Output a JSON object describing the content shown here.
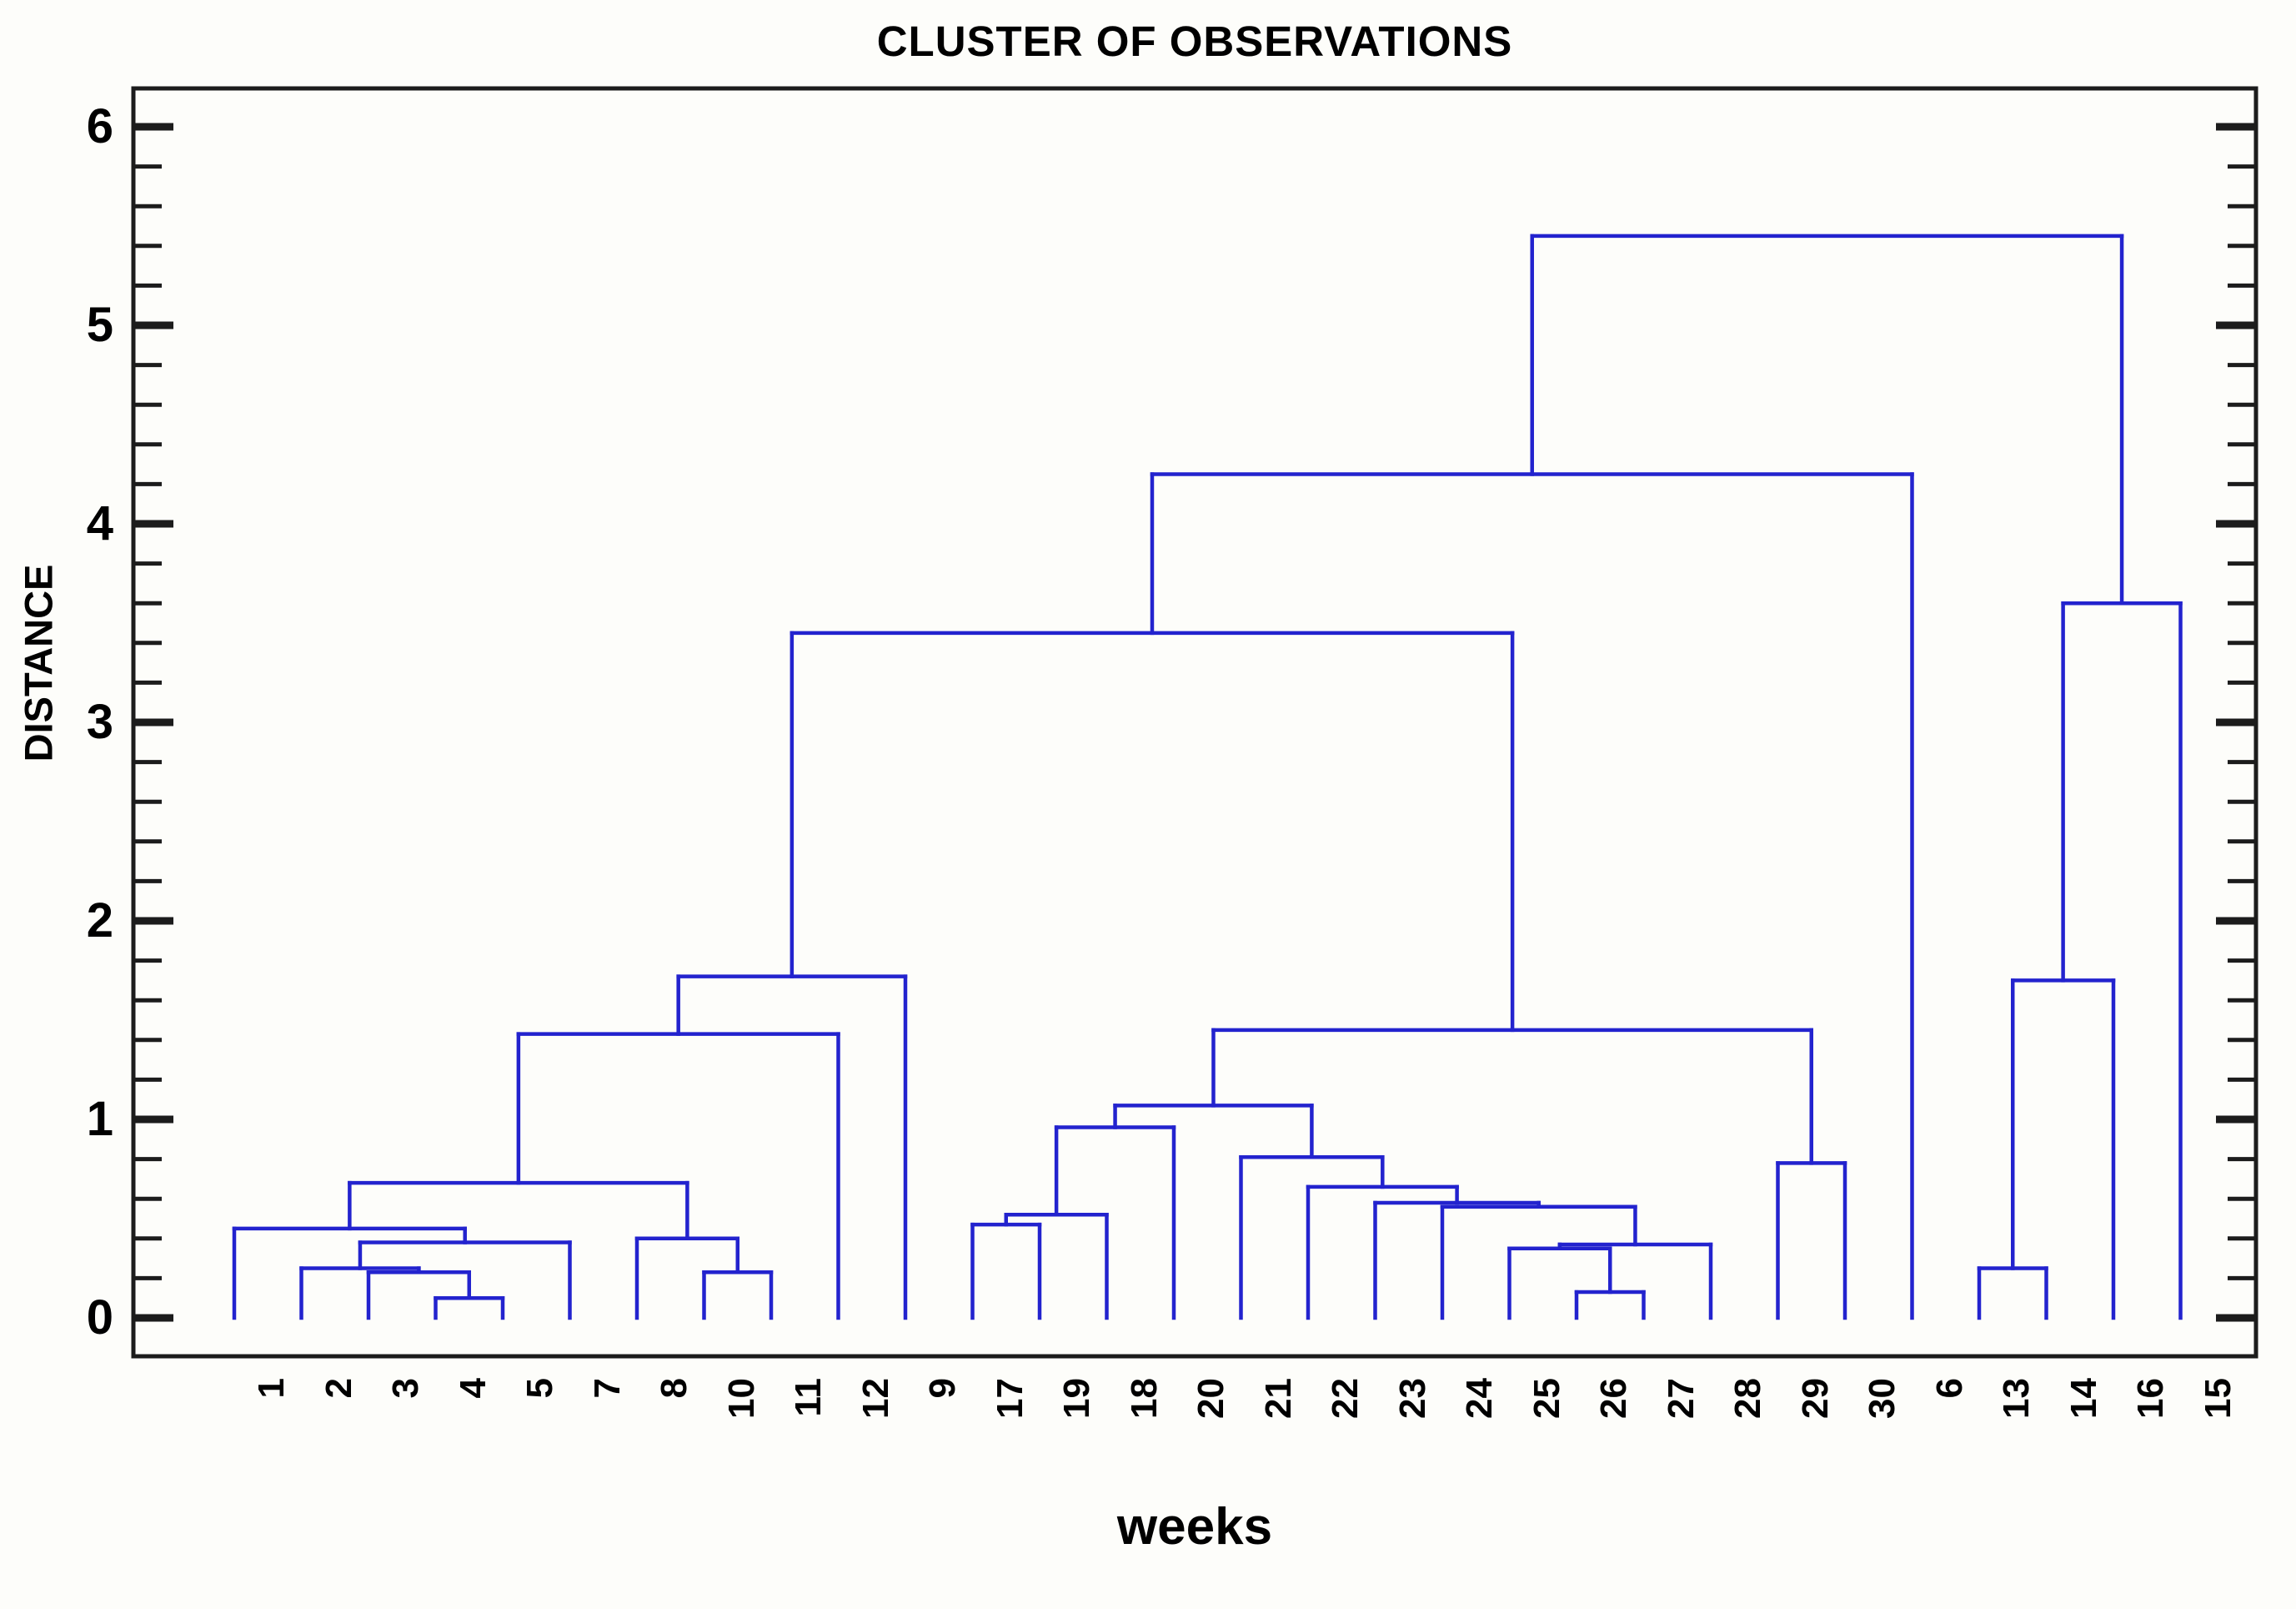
{
  "chart_data": {
    "type": "dendrogram",
    "title": "CLUSTER OF OBSERVATIONS",
    "xlabel": "weeks",
    "ylabel": "DISTANCE",
    "ylim": [
      0,
      6.2
    ],
    "y_major_ticks": [
      6,
      5,
      4,
      3,
      2,
      1,
      0
    ],
    "y_minor_step": 0.2,
    "grid": "off",
    "legend": "none",
    "leaves": [
      "1",
      "2",
      "3",
      "4",
      "5",
      "7",
      "8",
      "10",
      "11",
      "12",
      "9",
      "17",
      "19",
      "18",
      "20",
      "21",
      "22",
      "23",
      "24",
      "25",
      "26",
      "27",
      "28",
      "29",
      "30",
      "6",
      "13",
      "14",
      "16",
      "15"
    ],
    "merges": [
      {
        "a": "4",
        "b": "5",
        "h": 0.1
      },
      {
        "a": "3",
        "b": 0,
        "h": 0.23
      },
      {
        "a": "2",
        "b": 1,
        "h": 0.25
      },
      {
        "a": 2,
        "b": "7",
        "h": 0.38
      },
      {
        "a": "1",
        "b": 3,
        "h": 0.45
      },
      {
        "a": "10",
        "b": "11",
        "h": 0.23
      },
      {
        "a": "8",
        "b": 5,
        "h": 0.4
      },
      {
        "a": 4,
        "b": 6,
        "h": 0.68
      },
      {
        "a": 7,
        "b": "12",
        "h": 1.43
      },
      {
        "a": 8,
        "b": "9",
        "h": 1.72
      },
      {
        "a": "17",
        "b": "19",
        "h": 0.47
      },
      {
        "a": 10,
        "b": "18",
        "h": 0.52
      },
      {
        "a": "26",
        "b": "27",
        "h": 0.13
      },
      {
        "a": "25",
        "b": 12,
        "h": 0.35
      },
      {
        "a": 13,
        "b": "28",
        "h": 0.37
      },
      {
        "a": "24",
        "b": 14,
        "h": 0.56
      },
      {
        "a": "23",
        "b": 15,
        "h": 0.58
      },
      {
        "a": "22",
        "b": 16,
        "h": 0.66
      },
      {
        "a": "21",
        "b": 17,
        "h": 0.81
      },
      {
        "a": 11,
        "b": "20",
        "h": 0.96
      },
      {
        "a": 19,
        "b": 18,
        "h": 1.07
      },
      {
        "a": "29",
        "b": "30",
        "h": 0.78
      },
      {
        "a": 20,
        "b": 21,
        "h": 1.45
      },
      {
        "a": 9,
        "b": 22,
        "h": 3.45
      },
      {
        "a": 23,
        "b": "6",
        "h": 4.25
      },
      {
        "a": "13",
        "b": "14",
        "h": 0.25
      },
      {
        "a": 25,
        "b": "16",
        "h": 1.7
      },
      {
        "a": 26,
        "b": "15",
        "h": 3.6
      },
      {
        "a": 24,
        "b": 27,
        "h": 5.45
      }
    ],
    "line_color": "#2323CE",
    "axis_color": "#1c1c1c",
    "text_color": "#000000"
  }
}
